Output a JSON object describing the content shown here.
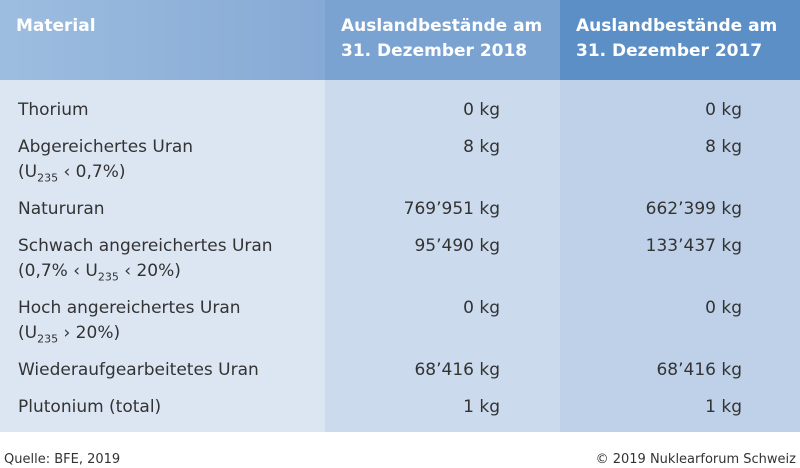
{
  "table": {
    "header": [
      "Material",
      "Auslandbestände am 31. Dezember 2018",
      "Auslandbestände am 31. Dezember 2017"
    ],
    "rows": [
      {
        "name": "Thorium",
        "v2018": "0 kg",
        "v2017": "0 kg"
      },
      {
        "name": "Abgereichertes Uran",
        "note": {
          "pre": "(U",
          "sub": "235",
          "post": " ‹ 0,7%)"
        },
        "v2018": "8 kg",
        "v2017": "8 kg"
      },
      {
        "name": "Natururan",
        "v2018": "769’951 kg",
        "v2017": "662’399 kg"
      },
      {
        "name": "Schwach angereichertes Uran",
        "note": {
          "pre": "(0,7% ‹ U",
          "sub": "235",
          "post": " ‹ 20%)"
        },
        "v2018": "95’490 kg",
        "v2017": "133’437 kg"
      },
      {
        "name": "Hoch angereichertes Uran",
        "note": {
          "pre": "(U",
          "sub": "235",
          "post": " › 20%)"
        },
        "v2018": "0 kg",
        "v2017": "0 kg"
      },
      {
        "name": "Wiederaufgearbeitetes Uran",
        "v2018": "68’416 kg",
        "v2017": "68’416 kg"
      },
      {
        "name": "Plutonium (total)",
        "v2018": "1 kg",
        "v2017": "1 kg"
      }
    ]
  },
  "footer": {
    "source": "Quelle: BFE, 2019",
    "copyright": "© 2019 Nuklearforum Schweiz"
  }
}
